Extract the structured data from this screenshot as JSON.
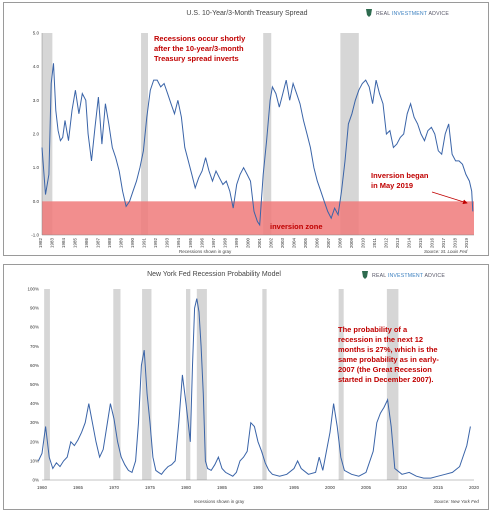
{
  "chart_data": [
    {
      "type": "line",
      "title": "U.S. 10-Year/3-Month Treasury Spread",
      "brand": {
        "prefix": "REAL ",
        "highlight": "INVESTMENT",
        "suffix": " ADVICE"
      },
      "ylim": [
        -1.0,
        5.0
      ],
      "yticks": [
        "5.0",
        "4.0",
        "3.0",
        "2.0",
        "1.0",
        "0.0",
        "-1.0"
      ],
      "ytick_values": [
        5,
        4,
        3,
        2,
        1,
        0,
        -1
      ],
      "xlim": [
        1982,
        2019.5
      ],
      "xticks": [
        "1982",
        "1983",
        "1984",
        "1985",
        "1986",
        "1987",
        "1988",
        "1989",
        "1990",
        "1991",
        "1992",
        "1993",
        "1994",
        "1995",
        "1996",
        "1997",
        "1998",
        "1999",
        "2000",
        "2001",
        "2002",
        "2003",
        "2004",
        "2005",
        "2006",
        "2007",
        "2008",
        "2009",
        "2010",
        "2011",
        "2012",
        "2013",
        "2014",
        "2015",
        "2016",
        "2017",
        "2018",
        "2019"
      ],
      "recessions": [
        [
          1982.0,
          1982.9
        ],
        [
          1990.6,
          1991.2
        ],
        [
          2001.2,
          2001.9
        ],
        [
          2007.9,
          2009.5
        ]
      ],
      "inversion_zone": [
        -1.0,
        0.0
      ],
      "annotations": {
        "recessions_note": [
          "Recessions occur shortly",
          "after the 10-year/3-month",
          "Treasury spread inverts"
        ],
        "inversion_began": [
          "Inversion began",
          "in May 2019"
        ],
        "inversion_zone": "inversion zone"
      },
      "footer_left": "Recessions shown in gray",
      "footer_right": "Source: St. Louis Fed",
      "series": [
        {
          "x": [
            1982.0,
            1982.3,
            1982.6,
            1982.8,
            1983.0,
            1983.2,
            1983.4,
            1983.6,
            1983.8,
            1984.0,
            1984.3,
            1984.6,
            1984.9,
            1985.2,
            1985.5,
            1985.8,
            1986.0,
            1986.3,
            1986.6,
            1986.9,
            1987.2,
            1987.5,
            1987.8,
            1988.1,
            1988.4,
            1988.7,
            1989.0,
            1989.3,
            1989.6,
            1989.9,
            1990.2,
            1990.5,
            1990.8,
            1991.1,
            1991.4,
            1991.7,
            1992.0,
            1992.3,
            1992.6,
            1992.9,
            1993.2,
            1993.5,
            1993.8,
            1994.1,
            1994.4,
            1994.7,
            1995.0,
            1995.3,
            1995.6,
            1995.9,
            1996.2,
            1996.5,
            1996.8,
            1997.1,
            1997.4,
            1997.7,
            1998.0,
            1998.3,
            1998.6,
            1998.9,
            1999.2,
            1999.5,
            1999.8,
            2000.1,
            2000.4,
            2000.7,
            2000.9,
            2001.2,
            2001.5,
            2001.8,
            2002.0,
            2002.3,
            2002.6,
            2002.9,
            2003.2,
            2003.5,
            2003.8,
            2004.1,
            2004.4,
            2004.7,
            2005.0,
            2005.3,
            2005.6,
            2005.9,
            2006.2,
            2006.5,
            2006.8,
            2007.1,
            2007.4,
            2007.7,
            2008.0,
            2008.3,
            2008.6,
            2008.9,
            2009.2,
            2009.5,
            2009.8,
            2010.1,
            2010.4,
            2010.7,
            2011.0,
            2011.3,
            2011.6,
            2011.9,
            2012.2,
            2012.5,
            2012.8,
            2013.1,
            2013.4,
            2013.7,
            2014.0,
            2014.3,
            2014.6,
            2014.9,
            2015.2,
            2015.5,
            2015.8,
            2016.1,
            2016.4,
            2016.7,
            2017.0,
            2017.3,
            2017.6,
            2017.9,
            2018.2,
            2018.5,
            2018.8,
            2019.1,
            2019.3,
            2019.4
          ],
          "y": [
            1.6,
            0.2,
            0.8,
            3.5,
            4.1,
            2.7,
            2.1,
            1.8,
            1.9,
            2.4,
            1.8,
            2.7,
            3.3,
            2.6,
            3.2,
            3.0,
            2.0,
            1.2,
            2.2,
            3.1,
            1.7,
            2.9,
            2.3,
            1.6,
            1.3,
            0.9,
            0.3,
            -0.15,
            0.0,
            0.3,
            0.6,
            1.0,
            1.5,
            2.5,
            3.3,
            3.6,
            3.6,
            3.4,
            3.5,
            3.2,
            2.9,
            2.6,
            3.0,
            2.5,
            1.6,
            1.2,
            0.8,
            0.4,
            0.7,
            0.9,
            1.3,
            0.9,
            0.6,
            0.9,
            0.7,
            0.5,
            0.6,
            0.3,
            -0.2,
            0.5,
            0.8,
            1.0,
            0.8,
            0.6,
            -0.3,
            -0.6,
            -0.7,
            0.8,
            1.8,
            3.0,
            3.4,
            3.2,
            2.8,
            3.2,
            3.6,
            3.0,
            3.5,
            3.2,
            2.9,
            2.4,
            2.0,
            1.6,
            1.0,
            0.6,
            0.3,
            0.0,
            -0.3,
            -0.5,
            -0.2,
            -0.4,
            0.3,
            1.2,
            2.3,
            2.6,
            3.0,
            3.3,
            3.5,
            3.6,
            3.4,
            2.9,
            3.6,
            3.2,
            2.9,
            2.0,
            2.1,
            1.6,
            1.7,
            1.9,
            2.0,
            2.6,
            2.9,
            2.5,
            2.3,
            2.0,
            1.8,
            2.1,
            2.2,
            2.0,
            1.5,
            1.4,
            2.0,
            2.3,
            1.4,
            1.2,
            1.2,
            1.1,
            0.8,
            0.6,
            0.3,
            -0.3
          ]
        }
      ]
    },
    {
      "type": "line",
      "title": "New York Fed Recession Probability Model",
      "brand": {
        "prefix": "REAL ",
        "highlight": "INVESTMENT",
        "suffix": " ADVICE"
      },
      "ylim": [
        0,
        100
      ],
      "yticks": [
        "100%",
        "90%",
        "80%",
        "70%",
        "60%",
        "50%",
        "40%",
        "30%",
        "20%",
        "10%",
        "0%"
      ],
      "ytick_values": [
        100,
        90,
        80,
        70,
        60,
        50,
        40,
        30,
        20,
        10,
        0
      ],
      "xlim": [
        1960,
        2020
      ],
      "xticks": [
        "1960",
        "1965",
        "1970",
        "1975",
        "1980",
        "1985",
        "1990",
        "1995",
        "2000",
        "2005",
        "2010",
        "2015",
        "2020"
      ],
      "xtick_values": [
        1960,
        1965,
        1970,
        1975,
        1980,
        1985,
        1990,
        1995,
        2000,
        2005,
        2010,
        2015,
        2020
      ],
      "recessions": [
        [
          1960.3,
          1961.1
        ],
        [
          1969.9,
          1970.9
        ],
        [
          1973.9,
          1975.2
        ],
        [
          1980.0,
          1980.6
        ],
        [
          1981.5,
          1982.9
        ],
        [
          1990.6,
          1991.2
        ],
        [
          2001.2,
          2001.9
        ],
        [
          2007.9,
          2009.5
        ]
      ],
      "annotation": [
        "The probability of a",
        "recession in the next 12",
        "months is 27%, which is the",
        "same probability as in early-",
        "2007 (the Great Recession",
        "started in December 2007)."
      ],
      "footer_center": "recessions shown in gray",
      "footer_right": "Source: New York Fed",
      "series": [
        {
          "x": [
            1959.5,
            1960.0,
            1960.5,
            1961.0,
            1961.5,
            1962.0,
            1962.5,
            1963.0,
            1963.5,
            1964.0,
            1964.5,
            1965.0,
            1965.5,
            1966.0,
            1966.5,
            1967.0,
            1967.5,
            1968.0,
            1968.5,
            1969.0,
            1969.5,
            1970.0,
            1970.5,
            1971.0,
            1971.5,
            1972.0,
            1972.5,
            1973.0,
            1973.4,
            1973.8,
            1974.2,
            1974.6,
            1975.0,
            1975.4,
            1975.8,
            1976.2,
            1976.6,
            1977.0,
            1977.5,
            1978.0,
            1978.5,
            1979.0,
            1979.5,
            1980.0,
            1980.3,
            1980.6,
            1980.9,
            1981.2,
            1981.5,
            1981.8,
            1982.1,
            1982.4,
            1982.7,
            1983.0,
            1983.5,
            1984.0,
            1984.5,
            1985.0,
            1985.5,
            1986.0,
            1986.5,
            1987.0,
            1987.5,
            1988.0,
            1988.5,
            1989.0,
            1989.5,
            1990.0,
            1990.5,
            1991.0,
            1991.5,
            1992.0,
            1993.0,
            1994.0,
            1995.0,
            1995.5,
            1996.0,
            1997.0,
            1998.0,
            1998.5,
            1999.0,
            2000.0,
            2000.5,
            2001.0,
            2001.5,
            2002.0,
            2003.0,
            2004.0,
            2005.0,
            2006.0,
            2006.5,
            2007.0,
            2007.5,
            2008.0,
            2008.5,
            2009.0,
            2010.0,
            2011.0,
            2012.0,
            2013.0,
            2014.0,
            2015.0,
            2016.0,
            2017.0,
            2018.0,
            2019.0,
            2019.5
          ],
          "y": [
            10,
            14,
            28,
            12,
            6,
            9,
            7,
            10,
            12,
            20,
            18,
            21,
            25,
            30,
            40,
            30,
            20,
            12,
            16,
            28,
            40,
            32,
            20,
            12,
            8,
            5,
            4,
            10,
            30,
            60,
            68,
            45,
            30,
            12,
            5,
            4,
            3,
            5,
            7,
            8,
            10,
            30,
            55,
            40,
            30,
            20,
            60,
            90,
            95,
            88,
            70,
            45,
            10,
            6,
            5,
            8,
            12,
            6,
            4,
            3,
            2,
            4,
            10,
            12,
            15,
            30,
            28,
            20,
            15,
            9,
            5,
            3,
            2,
            3,
            6,
            10,
            6,
            3,
            4,
            12,
            5,
            25,
            40,
            28,
            12,
            5,
            3,
            2,
            4,
            15,
            30,
            35,
            38,
            42,
            28,
            6,
            3,
            4,
            2,
            1,
            1,
            2,
            3,
            4,
            7,
            18,
            28
          ]
        }
      ]
    }
  ]
}
